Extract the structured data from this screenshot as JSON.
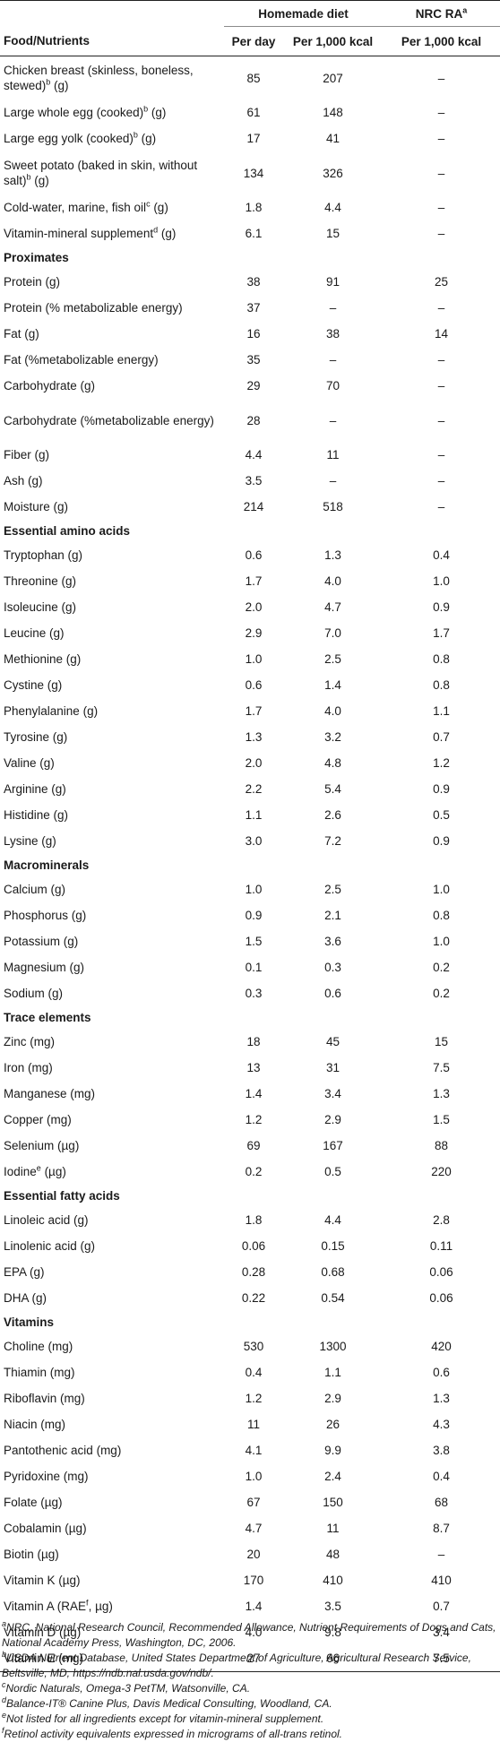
{
  "header": {
    "food_nutrients": "Food/Nutrients",
    "homemade_diet": "Homemade diet",
    "nrc_ra": "NRC RA",
    "nrc_ra_sup": "a",
    "per_day": "Per day",
    "per_1000_kcal": "Per 1,000 kcal",
    "per_1000_kcal_nrc": "Per 1,000 kcal"
  },
  "rows": [
    {
      "type": "row",
      "label": "Chicken breast (skinless, boneless, stewed)",
      "sup": "b",
      "unit": " (g)",
      "per_day": "85",
      "per_kcal": "207",
      "nrc": "–",
      "tall": true
    },
    {
      "type": "row",
      "label": "Large whole egg (cooked)",
      "sup": "b",
      "unit": " (g)",
      "per_day": "61",
      "per_kcal": "148",
      "nrc": "–"
    },
    {
      "type": "row",
      "label": "Large egg yolk (cooked)",
      "sup": "b",
      "unit": " (g)",
      "per_day": "17",
      "per_kcal": "41",
      "nrc": "–"
    },
    {
      "type": "row",
      "label": "Sweet potato (baked in skin, without salt)",
      "sup": "b",
      "unit": " (g)",
      "per_day": "134",
      "per_kcal": "326",
      "nrc": "–",
      "tall": true
    },
    {
      "type": "row",
      "label": "Cold-water, marine, fish oil",
      "sup": "c",
      "unit": " (g)",
      "per_day": "1.8",
      "per_kcal": "4.4",
      "nrc": "–"
    },
    {
      "type": "row",
      "label": "Vitamin-mineral supplement",
      "sup": "d",
      "unit": " (g)",
      "per_day": "6.1",
      "per_kcal": "15",
      "nrc": "–"
    },
    {
      "type": "section",
      "label": "Proximates"
    },
    {
      "type": "row",
      "label": "Protein (g)",
      "per_day": "38",
      "per_kcal": "91",
      "nrc": "25"
    },
    {
      "type": "row",
      "label": "Protein (% metabolizable energy)",
      "per_day": "37",
      "per_kcal": "–",
      "nrc": "–"
    },
    {
      "type": "row",
      "label": "Fat (g)",
      "per_day": "16",
      "per_kcal": "38",
      "nrc": "14"
    },
    {
      "type": "row",
      "label": "Fat (%metabolizable energy)",
      "per_day": "35",
      "per_kcal": "–",
      "nrc": "–"
    },
    {
      "type": "row",
      "label": "Carbohydrate (g)",
      "per_day": "29",
      "per_kcal": "70",
      "nrc": "–"
    },
    {
      "type": "row",
      "label": "Carbohydrate (%metabolizable energy)",
      "per_day": "28",
      "per_kcal": "–",
      "nrc": "–",
      "tall": true
    },
    {
      "type": "row",
      "label": "Fiber (g)",
      "per_day": "4.4",
      "per_kcal": "11",
      "nrc": "–"
    },
    {
      "type": "row",
      "label": "Ash (g)",
      "per_day": "3.5",
      "per_kcal": "–",
      "nrc": "–"
    },
    {
      "type": "row",
      "label": "Moisture (g)",
      "per_day": "214",
      "per_kcal": "518",
      "nrc": "–"
    },
    {
      "type": "section",
      "label": "Essential amino acids"
    },
    {
      "type": "row",
      "label": "Tryptophan (g)",
      "per_day": "0.6",
      "per_kcal": "1.3",
      "nrc": "0.4"
    },
    {
      "type": "row",
      "label": "Threonine (g)",
      "per_day": "1.7",
      "per_kcal": "4.0",
      "nrc": "1.0"
    },
    {
      "type": "row",
      "label": "Isoleucine (g)",
      "per_day": "2.0",
      "per_kcal": "4.7",
      "nrc": "0.9"
    },
    {
      "type": "row",
      "label": "Leucine (g)",
      "per_day": "2.9",
      "per_kcal": "7.0",
      "nrc": "1.7"
    },
    {
      "type": "row",
      "label": "Methionine (g)",
      "per_day": "1.0",
      "per_kcal": "2.5",
      "nrc": "0.8"
    },
    {
      "type": "row",
      "label": "Cystine (g)",
      "per_day": "0.6",
      "per_kcal": "1.4",
      "nrc": "0.8"
    },
    {
      "type": "row",
      "label": "Phenylalanine (g)",
      "per_day": "1.7",
      "per_kcal": "4.0",
      "nrc": "1.1"
    },
    {
      "type": "row",
      "label": "Tyrosine (g)",
      "per_day": "1.3",
      "per_kcal": "3.2",
      "nrc": "0.7"
    },
    {
      "type": "row",
      "label": "Valine (g)",
      "per_day": "2.0",
      "per_kcal": "4.8",
      "nrc": "1.2"
    },
    {
      "type": "row",
      "label": "Arginine (g)",
      "per_day": "2.2",
      "per_kcal": "5.4",
      "nrc": "0.9"
    },
    {
      "type": "row",
      "label": "Histidine (g)",
      "per_day": "1.1",
      "per_kcal": "2.6",
      "nrc": "0.5"
    },
    {
      "type": "row",
      "label": "Lysine (g)",
      "per_day": "3.0",
      "per_kcal": "7.2",
      "nrc": "0.9"
    },
    {
      "type": "section",
      "label": "Macrominerals"
    },
    {
      "type": "row",
      "label": "Calcium (g)",
      "per_day": "1.0",
      "per_kcal": "2.5",
      "nrc": "1.0"
    },
    {
      "type": "row",
      "label": "Phosphorus (g)",
      "per_day": "0.9",
      "per_kcal": "2.1",
      "nrc": "0.8"
    },
    {
      "type": "row",
      "label": "Potassium (g)",
      "per_day": "1.5",
      "per_kcal": "3.6",
      "nrc": "1.0"
    },
    {
      "type": "row",
      "label": "Magnesium (g)",
      "per_day": "0.1",
      "per_kcal": "0.3",
      "nrc": "0.2"
    },
    {
      "type": "row",
      "label": "Sodium (g)",
      "per_day": "0.3",
      "per_kcal": "0.6",
      "nrc": "0.2"
    },
    {
      "type": "section",
      "label": "Trace elements"
    },
    {
      "type": "row",
      "label": "Zinc (mg)",
      "per_day": "18",
      "per_kcal": "45",
      "nrc": "15"
    },
    {
      "type": "row",
      "label": "Iron (mg)",
      "per_day": "13",
      "per_kcal": "31",
      "nrc": "7.5"
    },
    {
      "type": "row",
      "label": "Manganese (mg)",
      "per_day": "1.4",
      "per_kcal": "3.4",
      "nrc": "1.3"
    },
    {
      "type": "row",
      "label": "Copper (mg)",
      "per_day": "1.2",
      "per_kcal": "2.9",
      "nrc": "1.5"
    },
    {
      "type": "row",
      "label": "Selenium (µg)",
      "per_day": "69",
      "per_kcal": "167",
      "nrc": "88"
    },
    {
      "type": "row",
      "label": "Iodine",
      "sup": "e",
      "unit": " (µg)",
      "per_day": "0.2",
      "per_kcal": "0.5",
      "nrc": "220"
    },
    {
      "type": "section",
      "label": "Essential fatty acids"
    },
    {
      "type": "row",
      "label": "Linoleic acid (g)",
      "per_day": "1.8",
      "per_kcal": "4.4",
      "nrc": "2.8"
    },
    {
      "type": "row",
      "label": "Linolenic acid (g)",
      "per_day": "0.06",
      "per_kcal": "0.15",
      "nrc": "0.11"
    },
    {
      "type": "row",
      "label": "EPA (g)",
      "per_day": "0.28",
      "per_kcal": "0.68",
      "nrc": "0.06"
    },
    {
      "type": "row",
      "label": "DHA (g)",
      "per_day": "0.22",
      "per_kcal": "0.54",
      "nrc": "0.06"
    },
    {
      "type": "section",
      "label": "Vitamins"
    },
    {
      "type": "row",
      "label": "Choline (mg)",
      "per_day": "530",
      "per_kcal": "1300",
      "nrc": "420"
    },
    {
      "type": "row",
      "label": "Thiamin (mg)",
      "per_day": "0.4",
      "per_kcal": "1.1",
      "nrc": "0.6"
    },
    {
      "type": "row",
      "label": "Riboflavin (mg)",
      "per_day": "1.2",
      "per_kcal": "2.9",
      "nrc": "1.3"
    },
    {
      "type": "row",
      "label": "Niacin (mg)",
      "per_day": "11",
      "per_kcal": "26",
      "nrc": "4.3"
    },
    {
      "type": "row",
      "label": "Pantothenic acid (mg)",
      "per_day": "4.1",
      "per_kcal": "9.9",
      "nrc": "3.8"
    },
    {
      "type": "row",
      "label": "Pyridoxine (mg)",
      "per_day": "1.0",
      "per_kcal": "2.4",
      "nrc": "0.4"
    },
    {
      "type": "row",
      "label": "Folate (µg)",
      "per_day": "67",
      "per_kcal": "150",
      "nrc": "68"
    },
    {
      "type": "row",
      "label": "Cobalamin (µg)",
      "per_day": "4.7",
      "per_kcal": "11",
      "nrc": "8.7"
    },
    {
      "type": "row",
      "label": "Biotin (µg)",
      "per_day": "20",
      "per_kcal": "48",
      "nrc": "–"
    },
    {
      "type": "row",
      "label": "Vitamin K (µg)",
      "per_day": "170",
      "per_kcal": "410",
      "nrc": "410"
    },
    {
      "type": "row",
      "label": "Vitamin A (RAE",
      "sup": "f",
      "unit": ", µg)",
      "per_day": "1.4",
      "per_kcal": "3.5",
      "nrc": "0.7"
    },
    {
      "type": "row",
      "label": "Vitamin D (µg)",
      "per_day": "4.0",
      "per_kcal": "9.8",
      "nrc": "3.4"
    },
    {
      "type": "row",
      "label": "Vitamin E (mg)",
      "per_day": "27",
      "per_kcal": "66",
      "nrc": "7.5"
    }
  ],
  "footnotes": [
    {
      "mark": "a",
      "text": "NRC, National Research Council, Recommended Allowance, Nutrient Requirements of Dogs and Cats, National Academy Press, Washington, DC, 2006."
    },
    {
      "mark": "b",
      "text": "USDA Nutrient Database, United States Department of Agriculture, Agricultural Research Service, Beltsville, MD, https://ndb.nal.usda.gov/ndb/."
    },
    {
      "mark": "c",
      "text": "Nordic Naturals, Omega-3 PetTM, Watsonville, CA."
    },
    {
      "mark": "d",
      "text": "Balance-IT® Canine Plus, Davis Medical Consulting, Woodland, CA."
    },
    {
      "mark": "e",
      "text": "Not listed for all ingredients except for vitamin-mineral supplement."
    },
    {
      "mark": "f",
      "text": "Retinol activity equivalents expressed in micrograms of all-trans retinol."
    }
  ]
}
